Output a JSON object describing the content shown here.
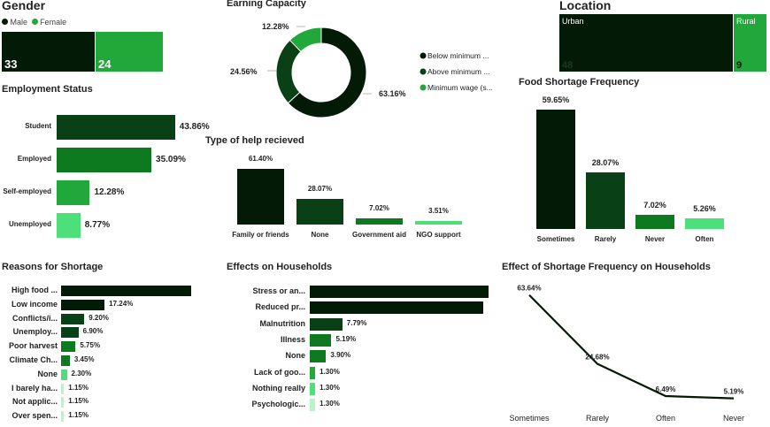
{
  "colors": {
    "c1": "#021a06",
    "c2": "#0a4016",
    "c3": "#0e7a20",
    "c4": "#20a83a",
    "c5": "#4de07a",
    "c6": "#b8f4c8"
  },
  "gender": {
    "title": "Gender",
    "legend": [
      "Male",
      "Female"
    ],
    "values": [
      33,
      24
    ]
  },
  "earning": {
    "title": "Earning Capacity",
    "chart_data": {
      "type": "pie",
      "labels": [
        "Below minimum ...",
        "Above minimum ...",
        "Minimum wage (s..."
      ],
      "values": [
        63.16,
        24.56,
        12.28
      ],
      "value_labels": [
        "63.16%",
        "24.56%",
        "12.28%"
      ]
    }
  },
  "location": {
    "title": "Location",
    "labels": [
      "Urban",
      "Rural"
    ],
    "values": [
      48,
      9
    ]
  },
  "employment": {
    "title": "Employment Status",
    "chart_data": {
      "type": "bar",
      "categories": [
        "Student",
        "Employed",
        "Self-employed",
        "Unemployed"
      ],
      "values": [
        43.86,
        35.09,
        12.28,
        8.77
      ],
      "value_labels": [
        "43.86%",
        "35.09%",
        "12.28%",
        "8.77%"
      ]
    }
  },
  "help": {
    "title": "Type of help recieved",
    "chart_data": {
      "type": "bar",
      "categories": [
        "Family or friends",
        "None",
        "Government aid",
        "NGO support"
      ],
      "values": [
        61.4,
        28.07,
        7.02,
        3.51
      ],
      "value_labels": [
        "61.40%",
        "28.07%",
        "7.02%",
        "3.51%"
      ]
    }
  },
  "frequency": {
    "title": "Food Shortage Frequency",
    "chart_data": {
      "type": "bar",
      "categories": [
        "Sometimes",
        "Rarely",
        "Never",
        "Often"
      ],
      "values": [
        59.65,
        28.07,
        7.02,
        5.26
      ],
      "value_labels": [
        "59.65%",
        "28.07%",
        "7.02%",
        "5.26%"
      ]
    }
  },
  "reasons": {
    "title": "Reasons for Shortage",
    "chart_data": {
      "type": "bar",
      "categories": [
        "High food ...",
        "Low income",
        "Conflicts/i...",
        "Unemploy...",
        "Poor harvest",
        "Climate Ch...",
        "None",
        "I barely ha...",
        "Not applic...",
        "Over spen..."
      ],
      "values": [
        51.72,
        17.24,
        9.2,
        6.9,
        5.75,
        3.45,
        2.3,
        1.15,
        1.15,
        1.15
      ],
      "value_labels": [
        "",
        "17.24%",
        "9.20%",
        "6.90%",
        "5.75%",
        "3.45%",
        "2.30%",
        "1.15%",
        "1.15%",
        "1.15%"
      ]
    }
  },
  "effects": {
    "title": "Effects on Households",
    "chart_data": {
      "type": "bar",
      "categories": [
        "Stress or an...",
        "Reduced pr...",
        "Malnutrition",
        "Illness",
        "None",
        "Lack of goo...",
        "Nothing really",
        "Psychologic..."
      ],
      "values": [
        42.86,
        41.56,
        7.79,
        5.19,
        3.9,
        1.3,
        1.3,
        1.3
      ],
      "value_labels": [
        "",
        "",
        "7.79%",
        "5.19%",
        "3.90%",
        "1.30%",
        "1.30%",
        "1.30%"
      ]
    }
  },
  "effect_freq": {
    "title": "Effect of Shortage Frequency on Households",
    "chart_data": {
      "type": "line",
      "categories": [
        "Sometimes",
        "Rarely",
        "Often",
        "Never"
      ],
      "values": [
        63.64,
        24.68,
        6.49,
        5.19
      ],
      "value_labels": [
        "63.64%",
        "24.68%",
        "6.49%",
        "5.19%"
      ]
    }
  }
}
